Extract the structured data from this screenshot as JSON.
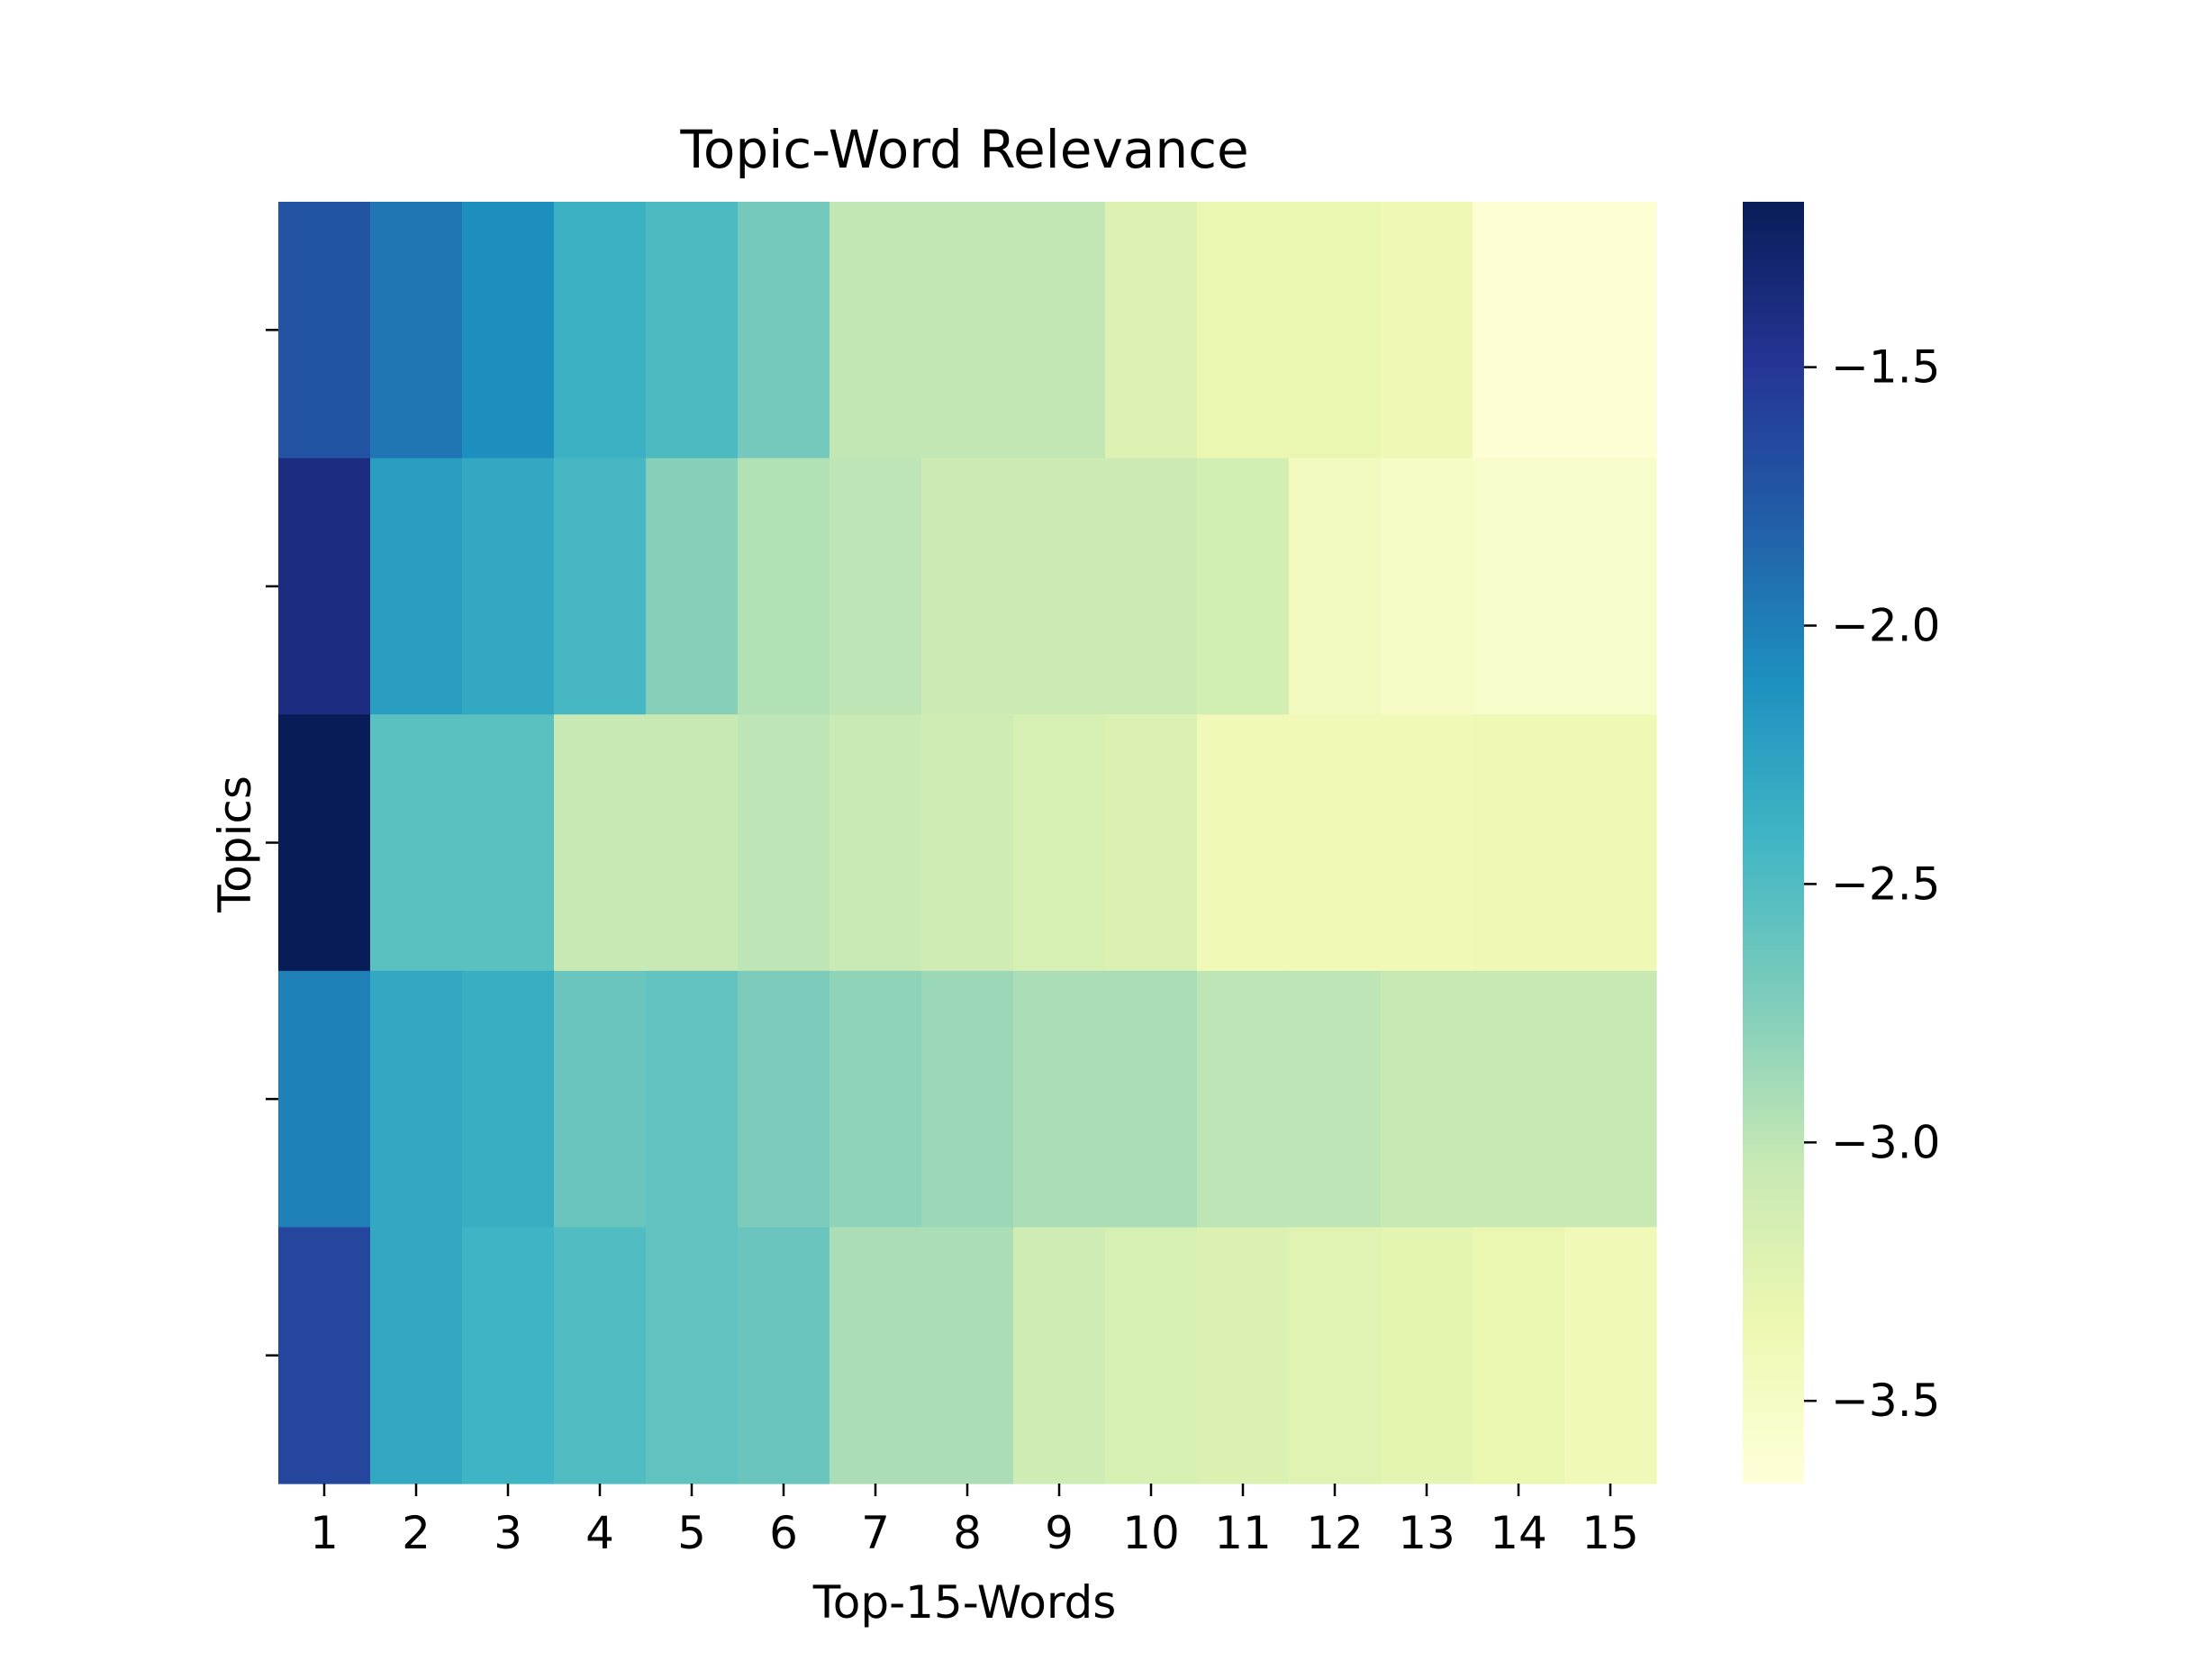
{
  "chart_data": {
    "type": "heatmap",
    "title": "Topic-Word Relevance",
    "xlabel": "Top-15-Words",
    "ylabel": "Topics",
    "x": [
      "1",
      "2",
      "3",
      "4",
      "5",
      "6",
      "7",
      "8",
      "9",
      "10",
      "11",
      "12",
      "13",
      "14",
      "15"
    ],
    "y": [
      "",
      "",
      "",
      "",
      ""
    ],
    "values": [
      [
        -1.72,
        -1.94,
        -2.1,
        -2.38,
        -2.48,
        -2.68,
        -3.02,
        -3.02,
        -3.02,
        -3.22,
        -3.32,
        -3.32,
        -3.38,
        -3.62,
        -3.62
      ],
      [
        -1.39,
        -2.22,
        -2.3,
        -2.45,
        -2.76,
        -2.95,
        -3.0,
        -3.08,
        -3.08,
        -3.08,
        -3.14,
        -3.46,
        -3.52,
        -3.54,
        -3.54
      ],
      [
        -1.18,
        -2.55,
        -2.55,
        -3.05,
        -3.05,
        -3.0,
        -3.06,
        -3.1,
        -3.16,
        -3.2,
        -3.4,
        -3.4,
        -3.4,
        -3.38,
        -3.38
      ],
      [
        -2.0,
        -2.3,
        -2.35,
        -2.62,
        -2.58,
        -2.72,
        -2.8,
        -2.85,
        -2.92,
        -2.92,
        -3.0,
        -3.0,
        -3.05,
        -3.05,
        -3.05
      ],
      [
        -1.62,
        -2.3,
        -2.4,
        -2.5,
        -2.58,
        -2.62,
        -2.92,
        -2.92,
        -3.1,
        -3.16,
        -3.2,
        -3.24,
        -3.28,
        -3.32,
        -3.4
      ]
    ],
    "colorbar": {
      "min": -3.66,
      "max": -1.18,
      "ticks": [
        -1.5,
        -2.0,
        -2.5,
        -3.0,
        -3.5
      ],
      "tick_labels": [
        "−1.5",
        "−2.0",
        "−2.5",
        "−3.0",
        "−3.5"
      ]
    },
    "colormap": [
      "#ffffd9",
      "#edf8b1",
      "#c7e9b4",
      "#7fcdbb",
      "#41b6c4",
      "#1d91c0",
      "#225ea8",
      "#253494",
      "#081d58"
    ],
    "grid": false
  }
}
